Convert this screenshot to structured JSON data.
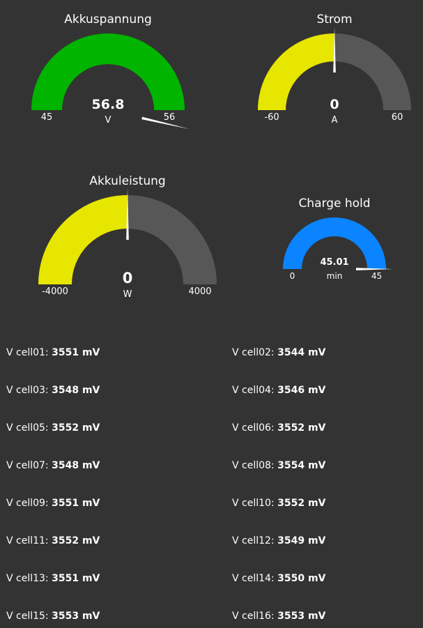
{
  "gauges": [
    {
      "title": "Akkuspannung",
      "value": 56.8,
      "unit": "V",
      "min": 45,
      "max": 56,
      "color": "#00b400",
      "track_color": "#575757"
    },
    {
      "title": "Strom",
      "value": 0,
      "unit": "A",
      "min": -60,
      "max": 60,
      "color": "#e6e600",
      "track_color": "#575757"
    },
    {
      "title": "Akkuleistung",
      "value": 0,
      "unit": "W",
      "min": -4000,
      "max": 4000,
      "color": "#e6e600",
      "track_color": "#575757"
    },
    {
      "title": "Charge hold",
      "value": 45.01,
      "unit": "min",
      "min": 0,
      "max": 45,
      "color": "#0a84ff",
      "track_color": "#575757"
    }
  ],
  "cells": [
    {
      "label": "V cell01:",
      "value": 3551,
      "unit": "mV"
    },
    {
      "label": "V cell02:",
      "value": 3544,
      "unit": "mV"
    },
    {
      "label": "V cell03:",
      "value": 3548,
      "unit": "mV"
    },
    {
      "label": "V cell04:",
      "value": 3546,
      "unit": "mV"
    },
    {
      "label": "V cell05:",
      "value": 3552,
      "unit": "mV"
    },
    {
      "label": "V cell06:",
      "value": 3552,
      "unit": "mV"
    },
    {
      "label": "V cell07:",
      "value": 3548,
      "unit": "mV"
    },
    {
      "label": "V cell08:",
      "value": 3554,
      "unit": "mV"
    },
    {
      "label": "V cell09:",
      "value": 3551,
      "unit": "mV"
    },
    {
      "label": "V cell10:",
      "value": 3552,
      "unit": "mV"
    },
    {
      "label": "V cell11:",
      "value": 3552,
      "unit": "mV"
    },
    {
      "label": "V cell12:",
      "value": 3549,
      "unit": "mV"
    },
    {
      "label": "V cell13:",
      "value": 3551,
      "unit": "mV"
    },
    {
      "label": "V cell14:",
      "value": 3550,
      "unit": "mV"
    },
    {
      "label": "V cell15:",
      "value": 3553,
      "unit": "mV"
    },
    {
      "label": "V cell16:",
      "value": 3553,
      "unit": "mV"
    }
  ]
}
